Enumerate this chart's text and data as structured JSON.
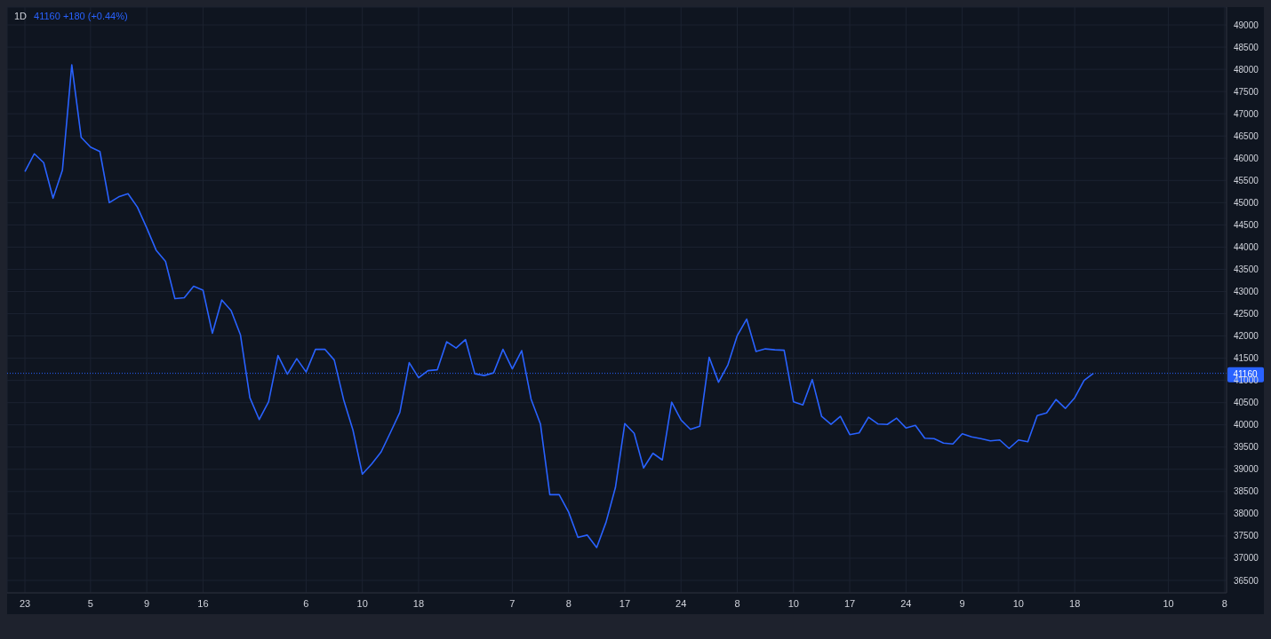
{
  "chart_data": {
    "type": "line",
    "title": "1D",
    "subtitle": "41160 +180 (+0.44%)",
    "categories": [
      "23",
      null,
      null,
      null,
      null,
      null,
      null,
      "5",
      null,
      null,
      null,
      null,
      null,
      "9",
      null,
      null,
      null,
      null,
      null,
      "16",
      null,
      null,
      null,
      null,
      null,
      null,
      null,
      null,
      null,
      null,
      "6",
      null,
      null,
      null,
      null,
      null,
      "10",
      null,
      null,
      null,
      null,
      null,
      "18",
      null,
      null,
      null,
      null,
      null,
      null,
      null,
      null,
      null,
      "7",
      null,
      null,
      null,
      null,
      null,
      "8",
      null,
      null,
      null,
      null,
      null,
      "17",
      null,
      null,
      null,
      null,
      null,
      "24",
      null,
      null,
      null,
      null,
      null,
      "8",
      null,
      null,
      null,
      null,
      null,
      "10",
      null,
      null,
      null,
      null,
      null,
      "17",
      null,
      null,
      null,
      null,
      null,
      "24",
      null,
      null,
      null,
      null,
      null,
      "9",
      null,
      null,
      null,
      null,
      null,
      "10",
      null,
      null,
      null,
      null,
      null,
      "18",
      null,
      null,
      null,
      null,
      null,
      null,
      null,
      null,
      null,
      "10",
      null,
      null,
      null,
      null,
      null,
      "8"
    ],
    "series": [
      {
        "color": "#2962ff",
        "values": [
          45700,
          46100,
          45900,
          45100,
          45730,
          48100,
          46470,
          46250,
          46150,
          45000,
          45130,
          45200,
          44900,
          44430,
          43930,
          43680,
          42840,
          42860,
          43120,
          43030,
          42060,
          42810,
          42570,
          42020,
          40610,
          40120,
          40520,
          41560,
          41140,
          41490,
          41190,
          41700,
          41700,
          41460,
          40570,
          39880,
          38890,
          39120,
          39390,
          39830,
          40280,
          41400,
          41060,
          41220,
          41240,
          41870,
          41730,
          41920,
          41150,
          41110,
          41170,
          41700,
          41260,
          41670,
          40580,
          40020,
          38430,
          38430,
          38040,
          37470,
          37520,
          37240,
          37810,
          38590,
          40030,
          39810,
          39030,
          39360,
          39210,
          40510,
          40110,
          39900,
          39970,
          41520,
          40960,
          41350,
          42010,
          42380,
          41650,
          41710,
          41690,
          41680,
          40520,
          40450,
          41020,
          40190,
          40010,
          40190,
          39780,
          39820,
          40170,
          40020,
          40010,
          40150,
          39930,
          39990,
          39700,
          39690,
          39590,
          39570,
          39800,
          39730,
          39690,
          39640,
          39660,
          39470,
          39660,
          39620,
          40210,
          40270,
          40570,
          40370,
          40610,
          41000,
          41160,
          null,
          null,
          null,
          null,
          null,
          null,
          null,
          null,
          null,
          null,
          null,
          null,
          null,
          null
        ]
      }
    ],
    "ylim": [
      36220,
      49400
    ],
    "yticks": [
      36500,
      37000,
      37500,
      38000,
      38500,
      39000,
      39500,
      40000,
      40500,
      41000,
      41500,
      42000,
      42500,
      43000,
      43500,
      44000,
      44500,
      45000,
      45500,
      46000,
      46500,
      47000,
      47500,
      48000,
      48500,
      49000
    ],
    "ref_lines": [
      {
        "axis": "y",
        "value": 41160,
        "label": "41160",
        "color": "#2962ff",
        "line_style": "dotted"
      }
    ],
    "grid": true,
    "marker": "none",
    "line_style": "solid"
  }
}
